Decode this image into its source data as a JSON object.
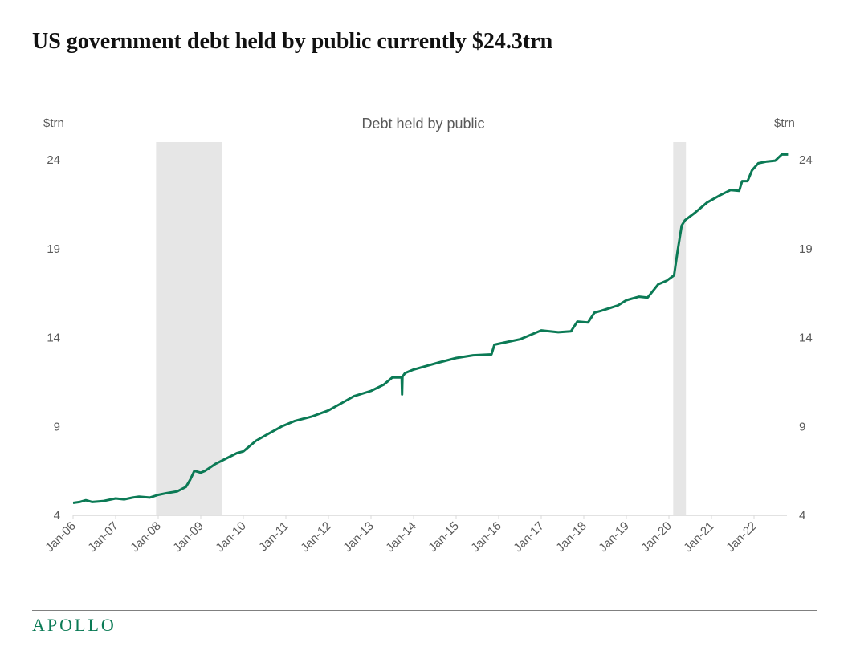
{
  "title": "US government debt held by public currently $24.3trn",
  "logo": "APOLLO",
  "chart_data": {
    "type": "line",
    "title": "Debt held by public",
    "ylabel_left": "$trn",
    "ylabel_right": "$trn",
    "ylim": [
      4,
      24
    ],
    "yticks": [
      4,
      9,
      14,
      19,
      24
    ],
    "xlim": [
      2006.0,
      2022.8
    ],
    "xticks": [
      "Jan-06",
      "Jan-07",
      "Jan-08",
      "Jan-09",
      "Jan-10",
      "Jan-11",
      "Jan-12",
      "Jan-13",
      "Jan-14",
      "Jan-15",
      "Jan-16",
      "Jan-17",
      "Jan-18",
      "Jan-19",
      "Jan-20",
      "Jan-21",
      "Jan-22"
    ],
    "grid": false,
    "line_color": "#0b7a55",
    "recession_color": "#e6e6e6",
    "recessions": [
      [
        2007.95,
        2009.5
      ],
      [
        2020.1,
        2020.4
      ]
    ],
    "series": [
      {
        "x": [
          2006.0,
          2006.15,
          2006.3,
          2006.45,
          2006.7,
          2007.0,
          2007.2,
          2007.4,
          2007.55,
          2007.8,
          2008.0,
          2008.2,
          2008.45,
          2008.65,
          2008.75,
          2008.85,
          2009.0,
          2009.1,
          2009.35,
          2009.6,
          2009.85,
          2010.0,
          2010.3,
          2010.6,
          2010.9,
          2011.2,
          2011.6,
          2012.0,
          2012.3,
          2012.6,
          2013.0,
          2013.3,
          2013.5,
          2013.72,
          2013.73,
          2013.74,
          2013.8,
          2014.0,
          2014.3,
          2014.6,
          2015.0,
          2015.4,
          2015.83,
          2015.9,
          2016.1,
          2016.5,
          2017.0,
          2017.4,
          2017.7,
          2017.85,
          2018.1,
          2018.25,
          2018.4,
          2018.8,
          2019.0,
          2019.3,
          2019.5,
          2019.75,
          2019.95,
          2020.12,
          2020.2,
          2020.3,
          2020.38,
          2020.6,
          2020.9,
          2021.2,
          2021.45,
          2021.65,
          2021.72,
          2021.85,
          2021.95,
          2022.1,
          2022.3,
          2022.5,
          2022.65,
          2022.8
        ],
        "y": [
          4.7,
          4.75,
          4.85,
          4.75,
          4.8,
          4.95,
          4.9,
          5.0,
          5.05,
          5.0,
          5.15,
          5.25,
          5.35,
          5.6,
          6.0,
          6.5,
          6.4,
          6.5,
          6.9,
          7.2,
          7.5,
          7.6,
          8.2,
          8.6,
          9.0,
          9.3,
          9.55,
          9.9,
          10.3,
          10.7,
          11.0,
          11.35,
          11.75,
          11.75,
          10.8,
          11.8,
          12.0,
          12.2,
          12.4,
          12.6,
          12.85,
          13.0,
          13.05,
          13.6,
          13.7,
          13.9,
          14.4,
          14.3,
          14.35,
          14.9,
          14.85,
          15.4,
          15.5,
          15.8,
          16.1,
          16.3,
          16.25,
          17.0,
          17.2,
          17.5,
          18.8,
          20.3,
          20.6,
          21.0,
          21.6,
          22.0,
          22.3,
          22.25,
          22.8,
          22.8,
          23.4,
          23.8,
          23.9,
          23.95,
          24.3,
          24.3
        ]
      }
    ]
  }
}
